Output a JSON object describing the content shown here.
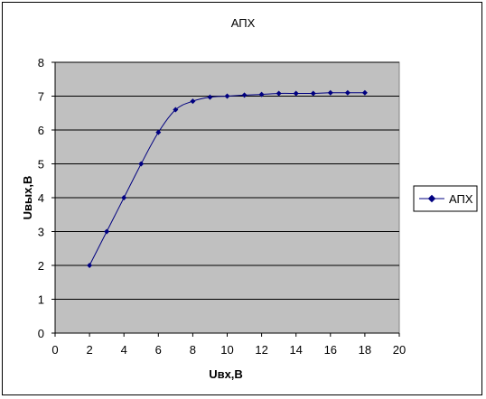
{
  "chart_data": {
    "type": "line",
    "title": "АПХ",
    "xlabel": "Uвх,В",
    "ylabel": "Uвых,В",
    "xlim": [
      0,
      20
    ],
    "ylim": [
      0,
      8
    ],
    "x_ticks": [
      "0",
      "2",
      "4",
      "6",
      "8",
      "10",
      "12",
      "14",
      "16",
      "18",
      "20"
    ],
    "y_ticks": [
      "0",
      "1",
      "2",
      "3",
      "4",
      "5",
      "6",
      "7",
      "8"
    ],
    "grid": true,
    "legend_position": "right",
    "colors": {
      "series": "#000080",
      "plot_bg": "#c0c0c0",
      "grid": "#000000"
    },
    "series": [
      {
        "name": "АПХ",
        "x": [
          2,
          3,
          4,
          5,
          6,
          7,
          8,
          9,
          10,
          11,
          12,
          13,
          14,
          15,
          16,
          17,
          18
        ],
        "y": [
          2.0,
          3.0,
          4.0,
          5.0,
          5.93,
          6.6,
          6.85,
          6.97,
          7.0,
          7.03,
          7.05,
          7.08,
          7.08,
          7.08,
          7.1,
          7.1,
          7.1
        ]
      }
    ]
  }
}
